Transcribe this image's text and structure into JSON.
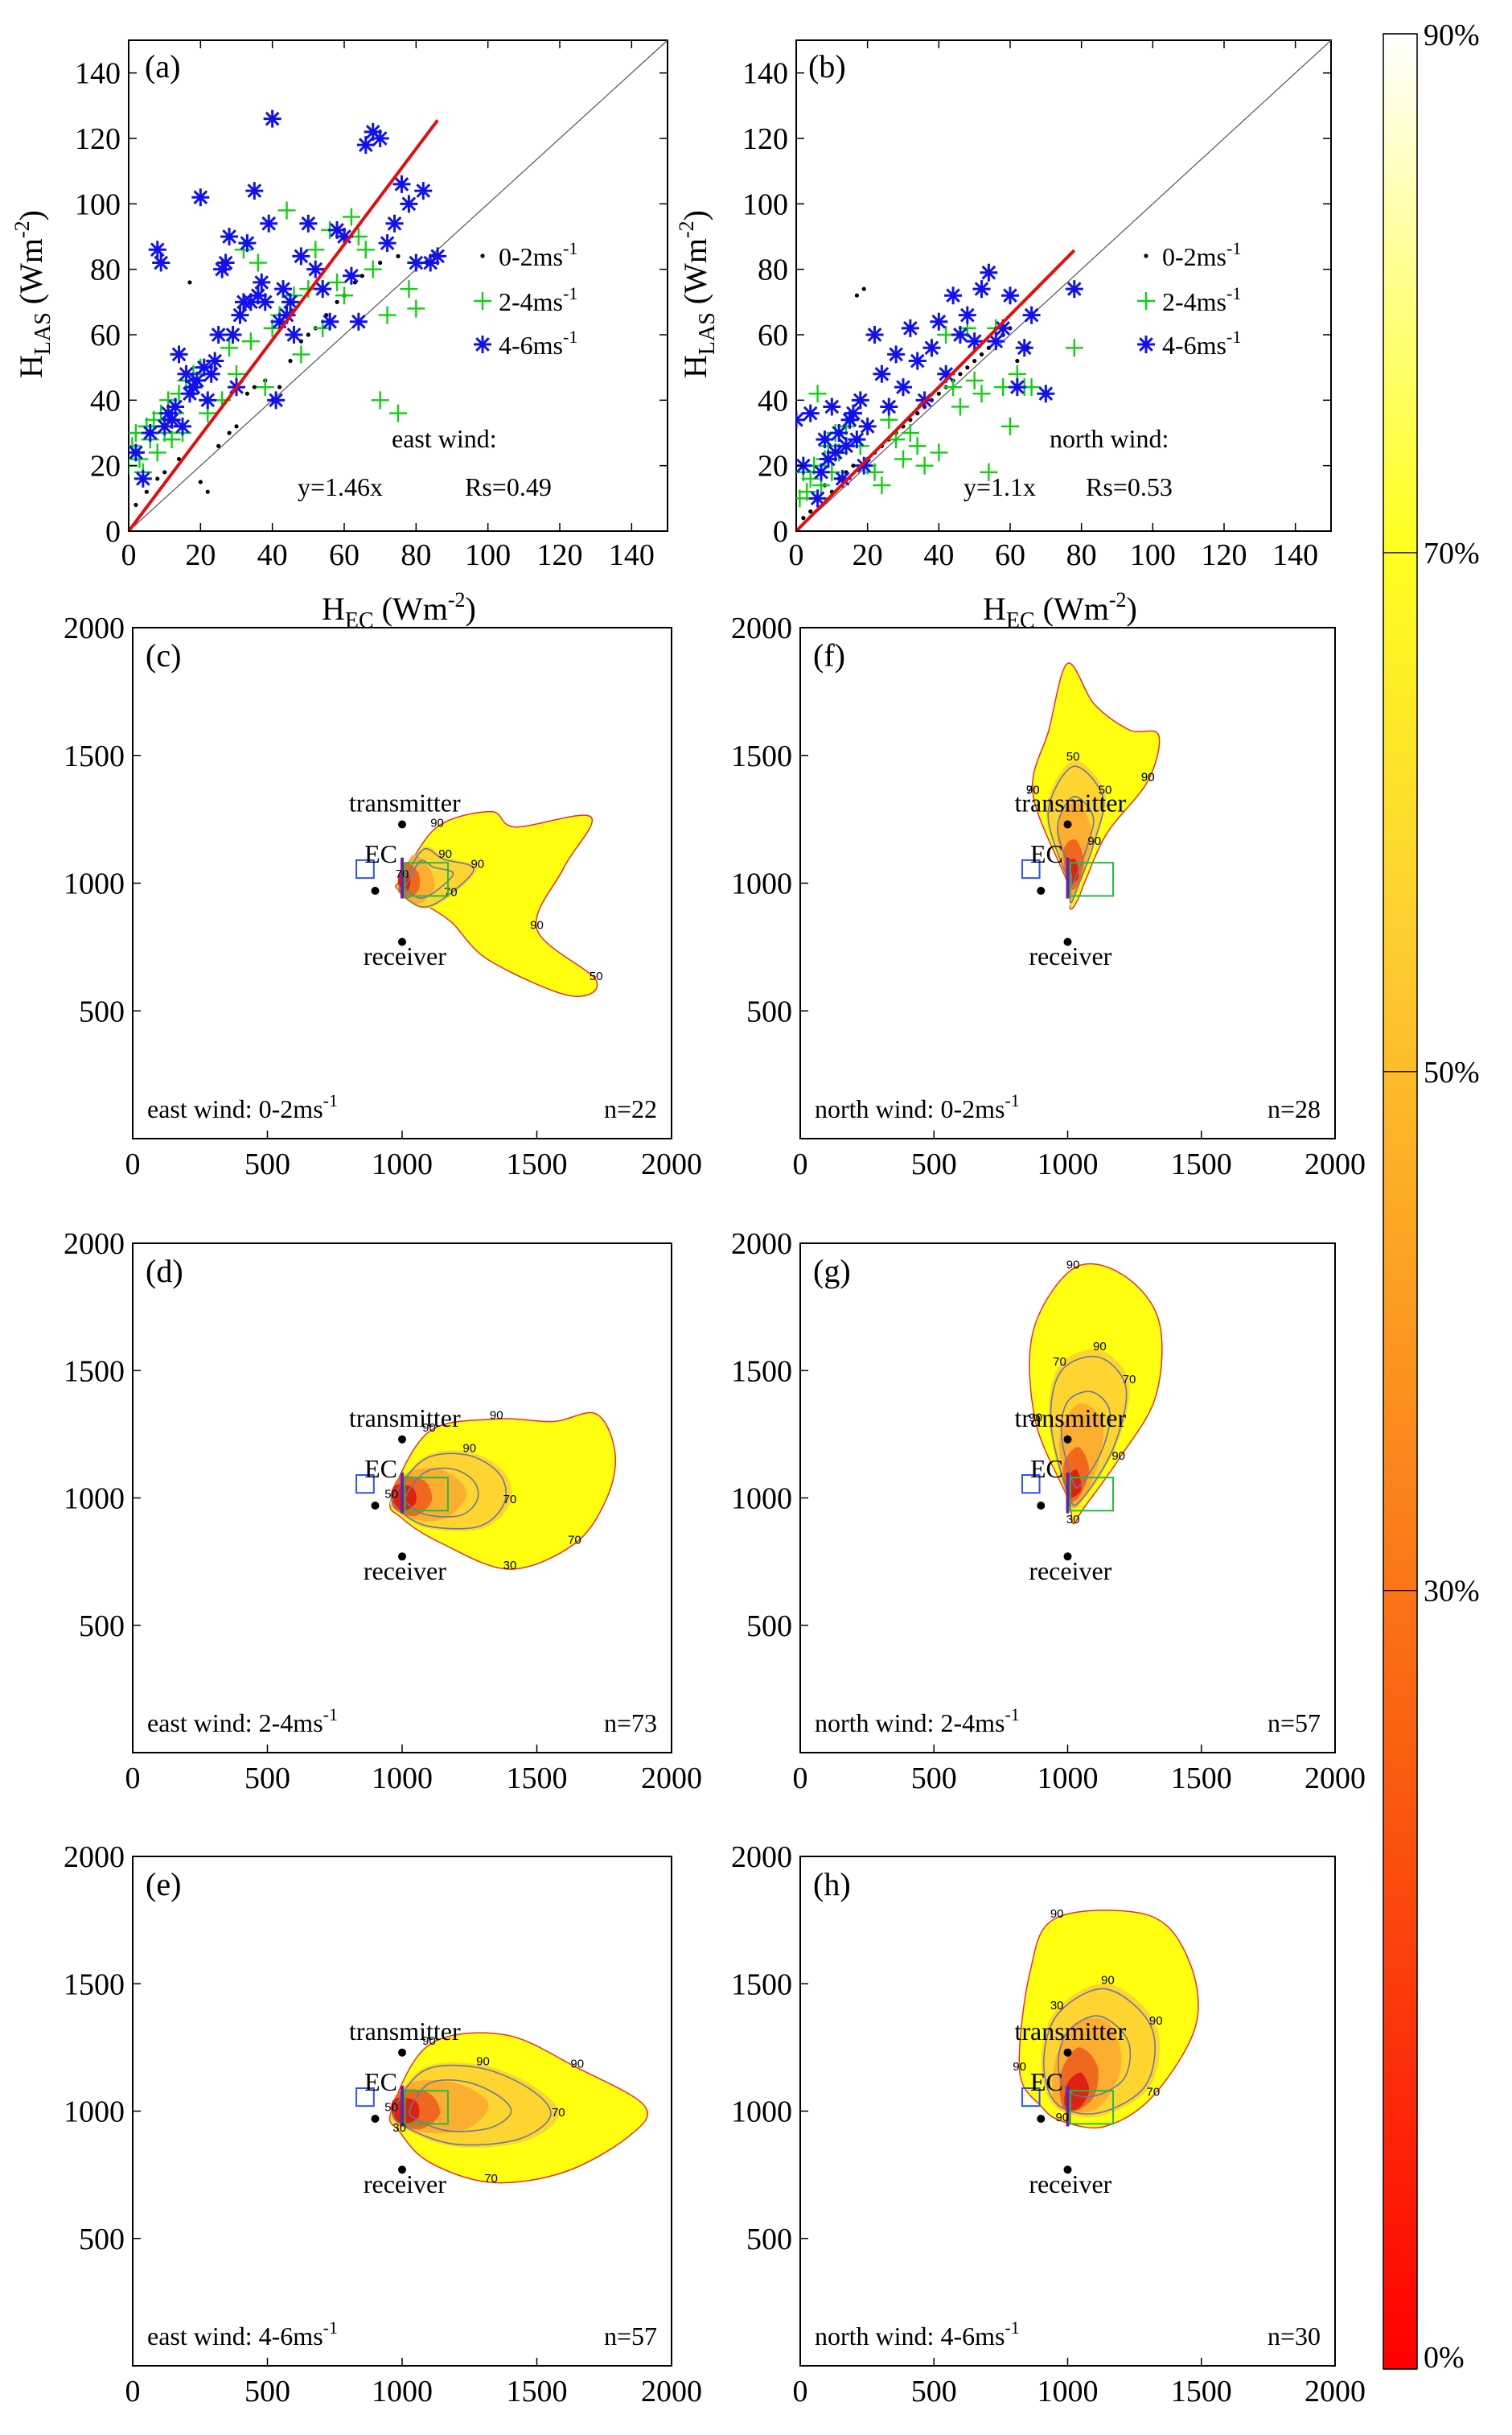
{
  "colors": {
    "red_line": "#e01010",
    "blue_star": "#1010f0",
    "green_plus": "#10d010",
    "black_dot": "#000000",
    "contour_90": "#ffff10",
    "contour_70": "#fed430",
    "contour_50": "#fcae30",
    "contour_30": "#f06820",
    "contour_10": "#e02010",
    "ec_box": "#3050ff",
    "las_box": "#20c040"
  },
  "chart_data": [
    {
      "id": "a",
      "type": "scatter",
      "panel_label": "(a)",
      "xlabel_main": "H",
      "xlabel_sub": "EC",
      "xlabel_unit": " (Wm",
      "xlabel_sup": "-2",
      "xlabel_close": ")",
      "ylabel_main": "H",
      "ylabel_sub": "LAS",
      "ylabel_unit": " (Wm",
      "ylabel_sup": "-2",
      "ylabel_close": ")",
      "xlim": [
        0,
        150
      ],
      "ylim": [
        0,
        150
      ],
      "xticks": [
        "0",
        "20",
        "40",
        "60",
        "80",
        "100",
        "120",
        "140"
      ],
      "yticks": [
        "0",
        "20",
        "40",
        "60",
        "80",
        "100",
        "120",
        "140"
      ],
      "legend": [
        {
          "marker": "dot",
          "text": "0-2ms",
          "sup": "-1"
        },
        {
          "marker": "plus",
          "text": "2-4ms",
          "sup": "-1"
        },
        {
          "marker": "star",
          "text": "4-6ms",
          "sup": "-1"
        }
      ],
      "annotation_title": "east wind:",
      "annotation_fit": "y=1.46x",
      "annotation_rs": "Rs=0.49",
      "fit_slope": 1.46,
      "fit_xmax": 86,
      "series": [
        {
          "name": "0-2ms-1",
          "marker": "dot",
          "x": [
            2,
            5,
            8,
            10,
            14,
            17,
            20,
            22,
            25,
            28,
            30,
            33,
            35,
            38,
            40,
            42,
            45,
            48,
            50,
            52,
            55,
            58,
            60,
            63,
            65,
            70,
            75,
            83,
            85
          ],
          "y": [
            8,
            12,
            16,
            18,
            22,
            76,
            15,
            12,
            26,
            30,
            32,
            42,
            44,
            46,
            40,
            44,
            52,
            58,
            60,
            62,
            66,
            70,
            72,
            76,
            78,
            82,
            84,
            82,
            84
          ]
        },
        {
          "name": "2-4ms-1",
          "marker": "plus",
          "x": [
            0,
            1,
            2,
            3,
            4,
            5,
            6,
            7,
            8,
            9,
            10,
            11,
            12,
            13,
            14,
            15,
            16,
            18,
            20,
            22,
            24,
            26,
            28,
            30,
            32,
            34,
            36,
            38,
            40,
            42,
            44,
            46,
            48,
            50,
            52,
            54,
            56,
            58,
            60,
            62,
            64,
            66,
            68,
            70,
            72,
            75,
            78,
            80
          ],
          "y": [
            20,
            26,
            30,
            22,
            18,
            32,
            28,
            34,
            24,
            36,
            30,
            40,
            28,
            36,
            42,
            30,
            46,
            48,
            50,
            36,
            52,
            40,
            56,
            48,
            86,
            58,
            82,
            44,
            62,
            66,
            98,
            72,
            54,
            74,
            86,
            62,
            92,
            76,
            72,
            96,
            90,
            86,
            80,
            40,
            66,
            36,
            74,
            68
          ]
        },
        {
          "name": "4-6ms-1",
          "marker": "star",
          "x": [
            2,
            4,
            6,
            8,
            9,
            10,
            11,
            12,
            13,
            14,
            15,
            16,
            17,
            18,
            19,
            20,
            21,
            22,
            23,
            24,
            25,
            26,
            27,
            28,
            29,
            30,
            31,
            32,
            33,
            34,
            35,
            36,
            37,
            38,
            39,
            40,
            41,
            42,
            43,
            44,
            45,
            46,
            48,
            50,
            52,
            54,
            56,
            58,
            60,
            62,
            64,
            66,
            68,
            70,
            72,
            74,
            76,
            78,
            80,
            82,
            84,
            86
          ],
          "y": [
            24,
            16,
            30,
            86,
            82,
            32,
            36,
            34,
            38,
            54,
            32,
            48,
            42,
            44,
            46,
            102,
            50,
            40,
            48,
            52,
            60,
            80,
            82,
            90,
            60,
            44,
            66,
            70,
            88,
            70,
            104,
            72,
            76,
            70,
            94,
            126,
            40,
            64,
            74,
            66,
            70,
            60,
            84,
            94,
            80,
            74,
            64,
            92,
            90,
            78,
            64,
            118,
            122,
            120,
            88,
            94,
            106,
            100,
            82,
            104,
            82,
            84
          ]
        }
      ]
    },
    {
      "id": "b",
      "type": "scatter",
      "panel_label": "(b)",
      "xlabel_main": "H",
      "xlabel_sub": "EC",
      "xlabel_unit": " (Wm",
      "xlabel_sup": "-2",
      "xlabel_close": ")",
      "ylabel_main": "H",
      "ylabel_sub": "LAS",
      "ylabel_unit": " (Wm",
      "ylabel_sup": "-2",
      "ylabel_close": ")",
      "xlim": [
        0,
        150
      ],
      "ylim": [
        0,
        150
      ],
      "xticks": [
        "0",
        "20",
        "40",
        "60",
        "80",
        "100",
        "120",
        "140"
      ],
      "yticks": [
        "0",
        "20",
        "40",
        "60",
        "80",
        "100",
        "120",
        "140"
      ],
      "legend": [
        {
          "marker": "dot",
          "text": "0-2ms",
          "sup": "-1"
        },
        {
          "marker": "plus",
          "text": "2-4ms",
          "sup": "-1"
        },
        {
          "marker": "star",
          "text": "4-6ms",
          "sup": "-1"
        }
      ],
      "annotation_title": "north wind:",
      "annotation_fit": "y=1.1x",
      "annotation_rs": "Rs=0.53",
      "fit_slope": 1.1,
      "fit_xmax": 78,
      "series": [
        {
          "name": "0-2ms-1",
          "marker": "dot",
          "x": [
            2,
            4,
            6,
            8,
            10,
            12,
            14,
            16,
            17,
            19,
            20,
            22,
            24,
            26,
            28,
            30,
            32,
            34,
            36,
            38,
            40,
            42,
            44,
            46,
            48,
            50,
            52,
            54,
            56,
            58,
            60,
            62,
            65
          ],
          "y": [
            4,
            6,
            10,
            14,
            12,
            16,
            18,
            20,
            72,
            74,
            22,
            24,
            26,
            28,
            30,
            32,
            34,
            36,
            38,
            40,
            42,
            44,
            46,
            48,
            50,
            52,
            54,
            56,
            58,
            60,
            62,
            52,
            56
          ]
        },
        {
          "name": "2-4ms-1",
          "marker": "plus",
          "x": [
            1,
            2,
            3,
            4,
            5,
            6,
            7,
            8,
            9,
            10,
            11,
            12,
            14,
            16,
            18,
            20,
            22,
            24,
            26,
            28,
            30,
            32,
            34,
            36,
            38,
            40,
            42,
            44,
            46,
            48,
            50,
            52,
            54,
            56,
            58,
            60,
            62,
            64,
            66,
            78
          ],
          "y": [
            10,
            18,
            12,
            16,
            20,
            42,
            14,
            22,
            26,
            18,
            30,
            24,
            32,
            36,
            26,
            20,
            18,
            14,
            34,
            28,
            22,
            30,
            26,
            20,
            56,
            24,
            60,
            44,
            38,
            62,
            46,
            42,
            18,
            62,
            44,
            32,
            48,
            44,
            44,
            56
          ]
        },
        {
          "name": "4-6ms-1",
          "marker": "star",
          "x": [
            0,
            2,
            4,
            6,
            7,
            8,
            9,
            10,
            11,
            12,
            13,
            14,
            15,
            16,
            17,
            18,
            19,
            20,
            22,
            24,
            26,
            28,
            30,
            32,
            34,
            36,
            38,
            40,
            42,
            44,
            46,
            48,
            50,
            52,
            54,
            56,
            58,
            60,
            62,
            64,
            66,
            70,
            78
          ],
          "y": [
            34,
            20,
            36,
            10,
            18,
            28,
            22,
            38,
            24,
            30,
            16,
            26,
            34,
            36,
            28,
            40,
            20,
            32,
            60,
            48,
            38,
            54,
            44,
            62,
            52,
            40,
            56,
            64,
            48,
            72,
            60,
            66,
            58,
            74,
            79,
            58,
            62,
            72,
            44,
            56,
            66,
            42,
            74
          ]
        }
      ]
    },
    {
      "id": "c",
      "type": "contour",
      "panel_label": "(c)",
      "xlim": [
        0,
        2000
      ],
      "ylim": [
        0,
        2000
      ],
      "xticks": [
        "0",
        "500",
        "1000",
        "1500",
        "2000"
      ],
      "yticks": [
        "500",
        "1000",
        "1500",
        "2000"
      ],
      "annotation": "east wind: 0-2ms",
      "annotation_sup": "-1",
      "count": "n=22",
      "transmitter": "transmitter",
      "ec": "EC",
      "receiver": "receiver",
      "levels": [
        "90",
        "70",
        "50",
        "90",
        "70",
        "90",
        "90"
      ],
      "shape": "east_small"
    },
    {
      "id": "d",
      "type": "contour",
      "panel_label": "(d)",
      "xlim": [
        0,
        2000
      ],
      "ylim": [
        0,
        2000
      ],
      "xticks": [
        "0",
        "500",
        "1000",
        "1500",
        "2000"
      ],
      "yticks": [
        "500",
        "1000",
        "1500",
        "2000"
      ],
      "annotation": "east wind: 2-4ms",
      "annotation_sup": "-1",
      "count": "n=73",
      "transmitter": "transmitter",
      "ec": "EC",
      "receiver": "receiver",
      "levels": [
        "90",
        "70",
        "70",
        "90",
        "90",
        "50",
        "30"
      ],
      "shape": "east_mid"
    },
    {
      "id": "e",
      "type": "contour",
      "panel_label": "(e)",
      "xlim": [
        0,
        2000
      ],
      "ylim": [
        0,
        2000
      ],
      "xticks": [
        "0",
        "500",
        "1000",
        "1500",
        "2000"
      ],
      "yticks": [
        "500",
        "1000",
        "1500",
        "2000"
      ],
      "annotation": "east wind: 4-6ms",
      "annotation_sup": "-1",
      "count": "n=57",
      "transmitter": "transmitter",
      "ec": "EC",
      "receiver": "receiver",
      "levels": [
        "90",
        "70",
        "70",
        "90",
        "90",
        "50",
        "30"
      ],
      "shape": "east_large"
    },
    {
      "id": "f",
      "type": "contour",
      "panel_label": "(f)",
      "xlim": [
        0,
        2000
      ],
      "ylim": [
        0,
        2000
      ],
      "xticks": [
        "0",
        "500",
        "1000",
        "1500",
        "2000"
      ],
      "yticks": [
        "500",
        "1000",
        "1500",
        "2000"
      ],
      "annotation": "north wind: 0-2ms",
      "annotation_sup": "-1",
      "count": "n=28",
      "transmitter": "transmitter",
      "ec": "EC",
      "receiver": "receiver",
      "levels": [
        "90",
        "90",
        "90",
        "50",
        "70",
        "50",
        "90"
      ],
      "shape": "north_small"
    },
    {
      "id": "g",
      "type": "contour",
      "panel_label": "(g)",
      "xlim": [
        0,
        2000
      ],
      "ylim": [
        0,
        2000
      ],
      "xticks": [
        "0",
        "500",
        "1000",
        "1500",
        "2000"
      ],
      "yticks": [
        "500",
        "1000",
        "1500",
        "2000"
      ],
      "annotation": "north wind: 2-4ms",
      "annotation_sup": "-1",
      "count": "n=57",
      "transmitter": "transmitter",
      "ec": "EC",
      "receiver": "receiver",
      "levels": [
        "90",
        "70",
        "90",
        "90",
        "90",
        "70",
        "30"
      ],
      "shape": "north_mid"
    },
    {
      "id": "h",
      "type": "contour",
      "panel_label": "(h)",
      "xlim": [
        0,
        2000
      ],
      "ylim": [
        0,
        2000
      ],
      "xticks": [
        "0",
        "500",
        "1000",
        "1500",
        "2000"
      ],
      "yticks": [
        "500",
        "1000",
        "1500",
        "2000"
      ],
      "annotation": "north wind: 4-6ms",
      "annotation_sup": "-1",
      "count": "n=30",
      "transmitter": "transmitter",
      "ec": "EC",
      "receiver": "receiver",
      "levels": [
        "90",
        "90",
        "70",
        "90",
        "90",
        "30",
        "90"
      ],
      "shape": "north_large"
    }
  ],
  "colorbar": {
    "range": [
      0,
      90
    ],
    "ticks": [
      {
        "value": 90,
        "label": "90%"
      },
      {
        "value": 70,
        "label": "70%"
      },
      {
        "value": 50,
        "label": "50%"
      },
      {
        "value": 30,
        "label": "30%"
      },
      {
        "value": 0,
        "label": "0%"
      }
    ]
  }
}
